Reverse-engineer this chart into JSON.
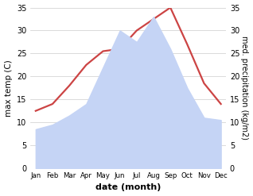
{
  "months": [
    "Jan",
    "Feb",
    "Mar",
    "Apr",
    "May",
    "Jun",
    "Jul",
    "Aug",
    "Sep",
    "Oct",
    "Nov",
    "Dec"
  ],
  "temp": [
    12.5,
    14.0,
    18.0,
    22.5,
    25.5,
    26.0,
    30.0,
    32.5,
    35.0,
    27.0,
    18.5,
    14.0
  ],
  "precip": [
    8.5,
    9.5,
    11.5,
    14.0,
    22.0,
    30.0,
    27.5,
    33.0,
    26.0,
    17.5,
    11.0,
    10.5
  ],
  "temp_color": "#cc4444",
  "precip_face_color": "#c5d4f5",
  "ylim": [
    0,
    35
  ],
  "yticks": [
    0,
    5,
    10,
    15,
    20,
    25,
    30,
    35
  ],
  "xlabel": "date (month)",
  "ylabel_left": "max temp (C)",
  "ylabel_right": "med. precipitation (kg/m2)",
  "bg_color": "#ffffff",
  "grid_color": "#cccccc"
}
